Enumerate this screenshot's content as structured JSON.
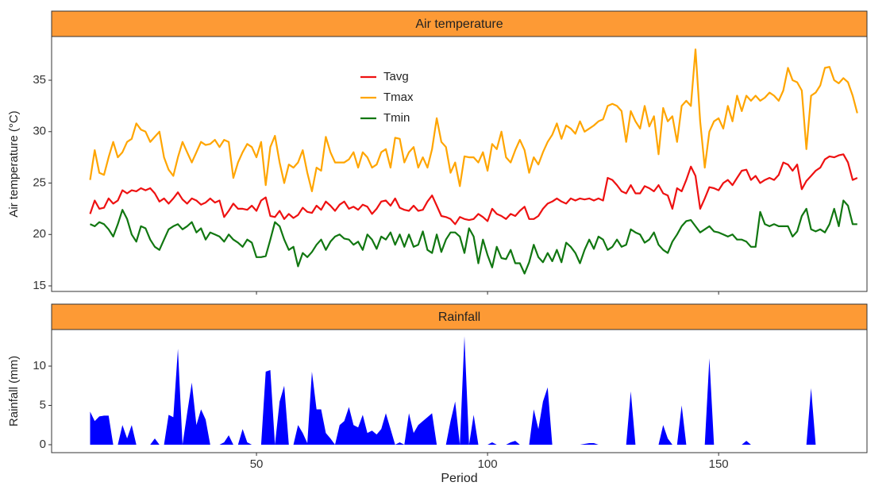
{
  "chart_data": [
    {
      "type": "line",
      "title": "Air temperature",
      "ylabel": "Air temperature (°C)",
      "x": [
        14,
        15,
        16,
        17,
        18,
        19,
        20,
        21,
        22,
        23,
        24,
        25,
        26,
        27,
        28,
        29,
        30,
        31,
        32,
        33,
        34,
        35,
        36,
        37,
        38,
        39,
        40,
        41,
        42,
        43,
        44,
        45,
        46,
        47,
        48,
        49,
        50,
        51,
        52,
        53,
        54,
        55,
        56,
        57,
        58,
        59,
        60,
        61,
        62,
        63,
        64,
        65,
        66,
        67,
        68,
        69,
        70,
        71,
        72,
        73,
        74,
        75,
        76,
        77,
        78,
        79,
        80,
        81,
        82,
        83,
        84,
        85,
        86,
        87,
        88,
        89,
        90,
        91,
        92,
        93,
        94,
        95,
        96,
        97,
        98,
        99,
        100,
        101,
        102,
        103,
        104,
        105,
        106,
        107,
        108,
        109,
        110,
        111,
        112,
        113,
        114,
        115,
        116,
        117,
        118,
        119,
        120,
        121,
        122,
        123,
        124,
        125,
        126,
        127,
        128,
        129,
        130,
        131,
        132,
        133,
        134,
        135,
        136,
        137,
        138,
        139,
        140,
        141,
        142,
        143,
        144,
        145,
        146,
        147,
        148,
        149,
        150,
        151,
        152,
        153,
        154,
        155,
        156,
        157,
        158,
        159,
        160,
        161,
        162,
        163,
        164,
        165,
        166,
        167,
        168,
        169,
        170,
        171,
        172,
        173,
        174,
        175,
        176,
        177,
        178,
        179,
        180
      ],
      "series": [
        {
          "name": "Tavg",
          "color": "#ee1111",
          "values": [
            22,
            23.3,
            22.5,
            22.6,
            23.5,
            23,
            23.3,
            24.3,
            24,
            24.3,
            24.2,
            24.5,
            24.3,
            24.5,
            24,
            23.2,
            23.5,
            23,
            23.5,
            24.1,
            23.4,
            23,
            23.5,
            23.3,
            22.9,
            23.1,
            23.5,
            23.1,
            23.3,
            21.7,
            22.3,
            23,
            22.5,
            22.5,
            22.4,
            22.8,
            22.3,
            23.3,
            23.6,
            21.8,
            21.7,
            22.3,
            21.5,
            22,
            21.6,
            21.9,
            22.6,
            22.2,
            22.1,
            22.8,
            22.4,
            23.2,
            22.8,
            22.3,
            22.9,
            23.2,
            22.5,
            22.7,
            22.4,
            22.9,
            22.7,
            22,
            22.5,
            23.2,
            23.3,
            22.8,
            23.5,
            22.6,
            22.4,
            22.3,
            22.8,
            22.3,
            22.4,
            23.2,
            23.8,
            22.8,
            21.8,
            21.7,
            21.5,
            21,
            21.7,
            21.5,
            21.4,
            21.5,
            22,
            21.7,
            21.3,
            22.5,
            22,
            21.8,
            21.5,
            22,
            21.8,
            22.3,
            22.7,
            21.5,
            21.5,
            21.8,
            22.5,
            23,
            23.2,
            23.5,
            23.2,
            23,
            23.5,
            23.3,
            23.5,
            23.4,
            23.5,
            23.3,
            23.5,
            23.3,
            25.5,
            25.3,
            24.8,
            24.2,
            24,
            24.8,
            24,
            24,
            24.7,
            24.5,
            24.2,
            24.8,
            24,
            23.8,
            22.5,
            24.5,
            24.2,
            25.3,
            26.6,
            25.7,
            22.5,
            23.5,
            24.6,
            24.5,
            24.3,
            25,
            25.3,
            24.8,
            25.5,
            26.2,
            26.3,
            25.3,
            25.7,
            25,
            25.3,
            25.5,
            25.3,
            25.8,
            27,
            26.8,
            26.2,
            26.8,
            24.4,
            25.2,
            25.7,
            26.2,
            26.5,
            27.3,
            27.6,
            27.5,
            27.7,
            27.8,
            27,
            25.3,
            25.5
          ]
        },
        {
          "name": "Tmax",
          "color": "#ffa500",
          "values": [
            25.3,
            28.2,
            26,
            25.8,
            27.5,
            29,
            27.5,
            28,
            29,
            29.3,
            30.8,
            30.2,
            30,
            29,
            29.5,
            30,
            27.5,
            26.3,
            25.7,
            27.5,
            29,
            28,
            27,
            28,
            29,
            28.7,
            28.8,
            29.2,
            28.5,
            29.2,
            29,
            25.5,
            27,
            28,
            28.8,
            28.5,
            27.5,
            29,
            24.8,
            28.5,
            29.6,
            27,
            25,
            26.8,
            26.5,
            27,
            28.2,
            26,
            24.2,
            26.5,
            26.2,
            29.5,
            28,
            27,
            27,
            27,
            27.3,
            28,
            26.5,
            28,
            27.5,
            26.5,
            26.8,
            28,
            28.3,
            26.5,
            29.4,
            29.3,
            27,
            28,
            28.5,
            26.5,
            27.5,
            26.5,
            28.3,
            31.3,
            29,
            28.5,
            26,
            27,
            24.7,
            27.6,
            27.5,
            27.5,
            27,
            28,
            26.2,
            28.8,
            28.3,
            30,
            27.5,
            27,
            28.2,
            29.2,
            28.2,
            26,
            27.5,
            26.8,
            28,
            29,
            29.7,
            30.8,
            29.3,
            30.6,
            30.3,
            29.8,
            31,
            30,
            30.3,
            30.6,
            31,
            31.2,
            32.5,
            32.7,
            32.5,
            32,
            29,
            32,
            31,
            30.3,
            32.5,
            30.5,
            31.5,
            27.8,
            32.3,
            31,
            31.5,
            29,
            32.5,
            33,
            32.5,
            38,
            31,
            26.5,
            30,
            31,
            31.3,
            30.3,
            32.5,
            31,
            33.5,
            32,
            33.5,
            33,
            33.5,
            33,
            33.3,
            33.8,
            33.5,
            33,
            34,
            36.2,
            35,
            34.8,
            34,
            28.3,
            33.5,
            33.8,
            34.5,
            36.2,
            36.3,
            35,
            34.7,
            35.2,
            34.8,
            33.5,
            31.8
          ]
        },
        {
          "name": "Tmin",
          "color": "#117711",
          "values": [
            21,
            20.8,
            21.2,
            21,
            20.5,
            19.8,
            21,
            22.4,
            21.5,
            20,
            19.3,
            20.8,
            20.6,
            19.5,
            18.8,
            18.5,
            19.5,
            20.5,
            20.8,
            21,
            20.5,
            20.8,
            21.2,
            20.2,
            20.6,
            19.5,
            20.2,
            20,
            19.8,
            19.3,
            20,
            19.5,
            19.2,
            18.8,
            19.5,
            19.2,
            17.8,
            17.8,
            17.9,
            19.5,
            21.2,
            20.8,
            19.5,
            18.5,
            18.8,
            16.9,
            18.2,
            17.8,
            18.3,
            19,
            19.5,
            18.5,
            19.3,
            19.8,
            20,
            19.6,
            19.5,
            19,
            19.3,
            18.5,
            20,
            19.5,
            18.6,
            19.8,
            19.5,
            20.2,
            19,
            20,
            18.8,
            20,
            18.8,
            19,
            20.3,
            18.5,
            18.2,
            20,
            18.3,
            19.5,
            20.2,
            20.2,
            19.8,
            18.2,
            20.6,
            19.8,
            17.2,
            19.5,
            18,
            16.8,
            18.8,
            17.7,
            17.6,
            18.5,
            17.2,
            17.2,
            16.2,
            17.3,
            19,
            17.8,
            17.3,
            18.2,
            17.4,
            18.5,
            17.3,
            19.2,
            18.8,
            18.2,
            17.2,
            18.5,
            19.5,
            18.6,
            19.8,
            19.5,
            18.5,
            18.8,
            19.5,
            18.8,
            19,
            20.5,
            20.2,
            20,
            19.2,
            19.5,
            20.2,
            19,
            18.5,
            18.2,
            19.3,
            20,
            20.8,
            21.3,
            21.4,
            20.8,
            20.2,
            20.5,
            20.8,
            20.3,
            20.2,
            20,
            19.8,
            20,
            19.5,
            19.5,
            19.3,
            18.8,
            18.8,
            22.2,
            21,
            20.8,
            21,
            20.8,
            20.8,
            20.8,
            19.8,
            20.3,
            21.8,
            22.5,
            20.5,
            20.3,
            20.5,
            20.2,
            21,
            22.5,
            20.8,
            23.3,
            22.8,
            21,
            21
          ]
        }
      ],
      "xlim": [
        5.67,
        182.1
      ],
      "xticks": [
        50,
        100,
        150
      ],
      "ylim": [
        14.46,
        39.25
      ],
      "yticks": [
        15,
        20,
        25,
        30,
        35
      ]
    },
    {
      "type": "area",
      "title": "Rainfall",
      "ylabel": "Rainfall (mm)",
      "xlabel": "Period",
      "color": "#0000ff",
      "x": [
        14,
        15,
        16,
        17,
        18,
        19,
        20,
        21,
        22,
        23,
        24,
        25,
        26,
        27,
        28,
        29,
        30,
        31,
        32,
        33,
        34,
        35,
        36,
        37,
        38,
        39,
        40,
        41,
        42,
        43,
        44,
        45,
        46,
        47,
        48,
        49,
        50,
        51,
        52,
        53,
        54,
        55,
        56,
        57,
        58,
        59,
        60,
        61,
        62,
        63,
        64,
        65,
        66,
        67,
        68,
        69,
        70,
        71,
        72,
        73,
        74,
        75,
        76,
        77,
        78,
        79,
        80,
        81,
        82,
        83,
        84,
        85,
        86,
        87,
        88,
        89,
        90,
        91,
        92,
        93,
        94,
        95,
        96,
        97,
        98,
        99,
        100,
        101,
        102,
        103,
        104,
        105,
        106,
        107,
        108,
        109,
        110,
        111,
        112,
        113,
        114,
        115,
        116,
        117,
        118,
        119,
        120,
        121,
        122,
        123,
        124,
        125,
        126,
        127,
        128,
        129,
        130,
        131,
        132,
        133,
        134,
        135,
        136,
        137,
        138,
        139,
        140,
        141,
        142,
        143,
        144,
        145,
        146,
        147,
        148,
        149,
        150,
        151,
        152,
        153,
        154,
        155,
        156,
        157,
        158,
        159,
        160,
        161,
        162,
        163,
        164,
        165,
        166,
        167,
        168,
        169,
        170,
        171,
        172,
        173,
        174,
        175,
        176,
        177,
        178,
        179,
        180
      ],
      "values": [
        4.2,
        3,
        3.6,
        3.7,
        3.7,
        0,
        0,
        2.5,
        0.8,
        2.5,
        0,
        0,
        0,
        0,
        0.8,
        0,
        0,
        3.8,
        3.5,
        12.2,
        0,
        4,
        7.9,
        2.5,
        4.5,
        3.2,
        0,
        0,
        0,
        0.3,
        1.2,
        0,
        0,
        2,
        0.3,
        0,
        0,
        0,
        9.3,
        9.5,
        0,
        5.5,
        7.5,
        0,
        0,
        2.5,
        1.5,
        0.2,
        9.3,
        4.5,
        4.5,
        1.5,
        0.8,
        0,
        2.5,
        3,
        4.8,
        2.5,
        2.2,
        3.8,
        1.5,
        1.8,
        1.3,
        2,
        4,
        2,
        0,
        0.3,
        0,
        4,
        1.5,
        2.5,
        3,
        3.5,
        4,
        0,
        0,
        0,
        3,
        5.5,
        0,
        13.8,
        0,
        3.8,
        0,
        0,
        0,
        0.3,
        0,
        0,
        0,
        0.3,
        0.5,
        0,
        0,
        0,
        4.5,
        2,
        5.5,
        7.3,
        0,
        0,
        0,
        0,
        0,
        0,
        0,
        0.1,
        0.2,
        0.2,
        0,
        0,
        0,
        0,
        0,
        0,
        0,
        6.8,
        0,
        0,
        0,
        0,
        0,
        0,
        2.5,
        0.8,
        0,
        0,
        5,
        0,
        0,
        0,
        0,
        0,
        11,
        0,
        0,
        0,
        0,
        0,
        0,
        0,
        0.5,
        0,
        0,
        0,
        0,
        0,
        0,
        0,
        0,
        0,
        0,
        0,
        0,
        0,
        7.2,
        0,
        0,
        0,
        0,
        0,
        0,
        0,
        0,
        0,
        0
      ],
      "xlim": [
        5.67,
        182.1
      ],
      "xticks": [
        50,
        100,
        150
      ],
      "ylim": [
        -1.01,
        14.65
      ],
      "yticks": [
        0,
        5,
        10
      ]
    }
  ]
}
